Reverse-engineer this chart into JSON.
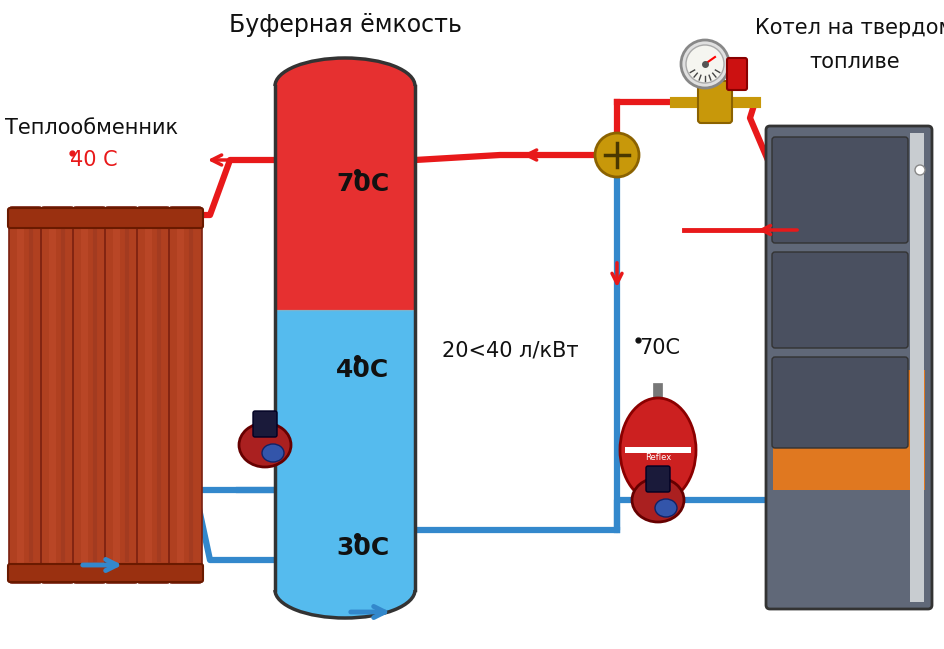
{
  "title_buffer": "Буферная ёмкость",
  "title_boiler_line1": "Котел на твердом",
  "title_boiler_line2": "топливе",
  "label_exchanger": "Теплообменник",
  "label_temp_40_red": "40 С",
  "label_70c_top": "70С",
  "label_40c_mid": "40С",
  "label_30c_bot": "30С",
  "label_volume": "20<40 л/кВт",
  "label_70c_right": "70С",
  "bg_color": "#ffffff",
  "red_color": "#e8191a",
  "tank_red_color": "#e63030",
  "tank_blue_color": "#55bbee",
  "radiator_color": "#b04020",
  "pipe_red": "#e8191a",
  "pipe_blue": "#3388cc",
  "boiler_gray": "#606878",
  "boiler_orange": "#e07820",
  "boiler_panel": "#4a5060",
  "boiler_light_gray": "#c8ccd0",
  "expansion_red": "#cc2020",
  "arrow_blue": "#3388cc",
  "arrow_red": "#e8191a",
  "valve_gold": "#c8980a",
  "text_dark": "#111111"
}
